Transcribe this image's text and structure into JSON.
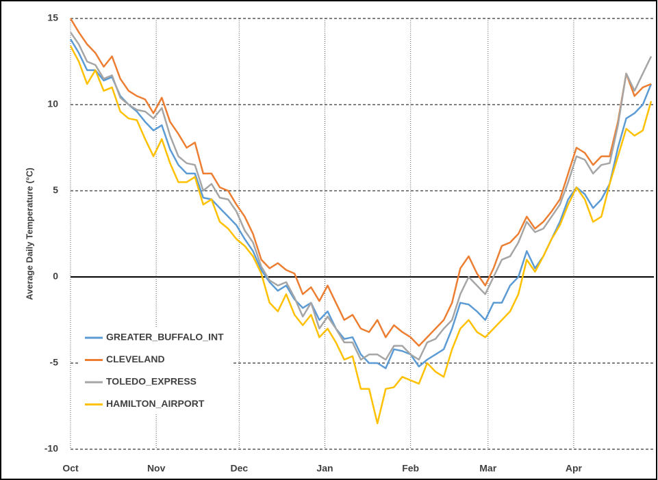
{
  "chart_data": {
    "type": "line",
    "ylabel": "Average Daily Temperature (°C)",
    "x": [
      0,
      3,
      6,
      9,
      12,
      15,
      18,
      21,
      24,
      27,
      30,
      33,
      36,
      39,
      42,
      45,
      48,
      51,
      54,
      57,
      60,
      63,
      66,
      69,
      72,
      75,
      78,
      81,
      84,
      87,
      90,
      93,
      96,
      99,
      102,
      105,
      108,
      111,
      114,
      117,
      120,
      123,
      126,
      129,
      132,
      135,
      138,
      141,
      144,
      147,
      150,
      153,
      156,
      159,
      162,
      165,
      168,
      171,
      174,
      177,
      180,
      183,
      186,
      189,
      192,
      195,
      198,
      201,
      204,
      207,
      210
    ],
    "xlim": [
      0,
      211
    ],
    "xticks": [
      {
        "value": 0,
        "label": "Oct"
      },
      {
        "value": 31,
        "label": "Nov"
      },
      {
        "value": 61,
        "label": "Dec"
      },
      {
        "value": 92,
        "label": "Jan"
      },
      {
        "value": 123,
        "label": "Feb"
      },
      {
        "value": 151,
        "label": "Mar"
      },
      {
        "value": 182,
        "label": "Apr"
      }
    ],
    "ylim": [
      -10,
      15
    ],
    "yticks": [
      -10,
      -5,
      0,
      5,
      10,
      15
    ],
    "grid": true,
    "legend": "lower left",
    "series": [
      {
        "name": "GREATER_BUFFALO_INT",
        "color": "#5b9bd5",
        "values": [
          13.8,
          13,
          12,
          12,
          11.4,
          11.6,
          10.5,
          10,
          9.6,
          9,
          8.5,
          8.8,
          7.4,
          6.5,
          6,
          6,
          4.6,
          4.5,
          4,
          3.5,
          3,
          2.2,
          1.5,
          0.4,
          -0.3,
          -0.8,
          -0.5,
          -1.3,
          -1.8,
          -1.5,
          -2.5,
          -2,
          -3,
          -3.6,
          -3.5,
          -4.5,
          -5,
          -5,
          -5.3,
          -4.2,
          -4.3,
          -4.5,
          -5.2,
          -4.8,
          -4.5,
          -4.2,
          -3,
          -1.5,
          -1.6,
          -2,
          -2.5,
          -1.5,
          -1.5,
          -0.5,
          0,
          1.5,
          0.5,
          1.2,
          2.2,
          3.2,
          4.5,
          5.2,
          4.8,
          4,
          4.5,
          5.4,
          7.5,
          9.2,
          9.5,
          10,
          11.2
        ]
      },
      {
        "name": "CLEVELAND",
        "color": "#ed7d31",
        "values": [
          15,
          14.2,
          13.5,
          13,
          12.2,
          12.8,
          11.5,
          10.8,
          10.5,
          10.3,
          9.5,
          10.4,
          9,
          8.3,
          7.5,
          7.8,
          6,
          6,
          5.2,
          5,
          4.2,
          3.5,
          2.5,
          1,
          0.5,
          0.8,
          0.4,
          0.2,
          -1,
          -0.6,
          -1.4,
          -0.5,
          -1.5,
          -2.5,
          -2.2,
          -3,
          -3.2,
          -2.5,
          -3.5,
          -2.8,
          -3.2,
          -3.5,
          -4,
          -3.5,
          -3,
          -2.5,
          -1.5,
          0.5,
          1.2,
          0.2,
          -0.5,
          0.5,
          1.8,
          2,
          2.5,
          3.5,
          2.8,
          3.2,
          3.8,
          4.5,
          6,
          7.5,
          7.2,
          6.5,
          7,
          7,
          9,
          11.8,
          10.5,
          11,
          11.2
        ]
      },
      {
        "name": "TOLEDO_EXPRESS",
        "color": "#a5a5a5",
        "values": [
          14.2,
          13.5,
          12.5,
          12.3,
          11.5,
          11.7,
          10.4,
          10,
          9.7,
          9.6,
          9.2,
          9.8,
          8.2,
          7,
          6.6,
          6.5,
          5,
          5.4,
          4.6,
          4.5,
          3.8,
          2.7,
          2,
          0.6,
          -0.2,
          -0.5,
          -0.3,
          -1.2,
          -2.3,
          -1.5,
          -3,
          -2.3,
          -3,
          -3.8,
          -3.8,
          -4.8,
          -4.5,
          -4.5,
          -4.8,
          -4,
          -4,
          -4.5,
          -4.8,
          -3.8,
          -3.6,
          -3,
          -2.5,
          -1,
          0,
          -0.5,
          -1,
          0,
          1,
          1.2,
          2,
          3.2,
          2.6,
          2.8,
          3.5,
          4.2,
          5.5,
          7,
          6.8,
          6,
          6.5,
          6.6,
          8.8,
          11.8,
          10.8,
          11.8,
          12.8
        ]
      },
      {
        "name": "HAMILTON_AIRPORT",
        "color": "#ffc000",
        "values": [
          13.4,
          12.5,
          11.2,
          12,
          10.8,
          11,
          9.6,
          9.2,
          9.1,
          8,
          7,
          8,
          6.6,
          5.5,
          5.5,
          5.8,
          4.2,
          4.5,
          3.2,
          2.8,
          2.2,
          1.8,
          1.2,
          0.2,
          -1.5,
          -2,
          -1,
          -2.2,
          -2.8,
          -2.2,
          -3.5,
          -3,
          -3.8,
          -4.8,
          -4.6,
          -6.5,
          -6.5,
          -8.5,
          -6.5,
          -6.4,
          -5.8,
          -6,
          -6.2,
          -5,
          -5.5,
          -5.8,
          -4.2,
          -3,
          -2.5,
          -3.2,
          -3.5,
          -3,
          -2.5,
          -2,
          -1,
          1,
          0.3,
          1.2,
          2.2,
          3,
          4.2,
          5.2,
          4.5,
          3.2,
          3.5,
          5.4,
          7,
          8.6,
          8.2,
          8.5,
          10.2
        ]
      }
    ]
  }
}
